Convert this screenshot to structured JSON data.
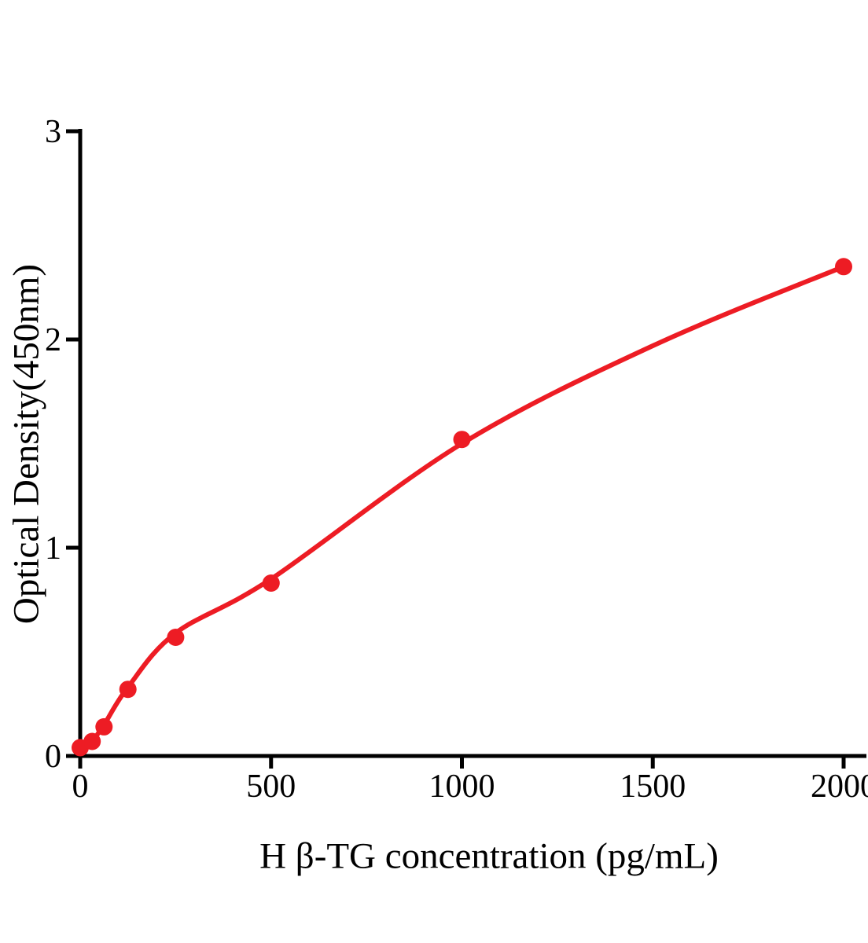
{
  "figure": {
    "background": "#ffffff",
    "axis_color": "#000000",
    "accent_red": "#ed1c24"
  },
  "chart_data": {
    "type": "scatter",
    "title": "",
    "xlabel": "H β-TG concentration (pg/mL)",
    "ylabel": "Optical Density(450nm)",
    "xlim": [
      0,
      2055
    ],
    "ylim": [
      0,
      3
    ],
    "x_ticks": [
      0,
      500,
      1000,
      1500,
      2000
    ],
    "y_ticks": [
      0,
      1,
      2,
      3
    ],
    "grid": false,
    "legend_position": "none",
    "series": [
      {
        "name": "standard-points",
        "type": "scatter",
        "color": "#ed1c24",
        "marker": "circle",
        "marker_radius_px": 11,
        "x": [
          0,
          31.25,
          62.5,
          125,
          250,
          500,
          1000,
          2000
        ],
        "y": [
          0.04,
          0.07,
          0.14,
          0.32,
          0.57,
          0.83,
          1.52,
          2.35
        ]
      },
      {
        "name": "fit-curve",
        "type": "line",
        "color": "#ed1c24",
        "stroke_width_px": 6,
        "x": [
          0,
          31.25,
          62.5,
          125,
          250,
          500,
          1000,
          1500,
          2000
        ],
        "y": [
          0.01,
          0.07,
          0.15,
          0.33,
          0.59,
          0.85,
          1.5,
          1.97,
          2.35
        ]
      }
    ]
  }
}
